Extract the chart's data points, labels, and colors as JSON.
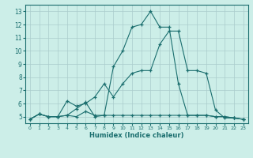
{
  "xlabel": "Humidex (Indice chaleur)",
  "bg_color": "#cceee8",
  "grid_color": "#aacccc",
  "line_color": "#1a6e6e",
  "xlim": [
    -0.5,
    23.5
  ],
  "ylim": [
    4.5,
    13.5
  ],
  "xticks": [
    0,
    1,
    2,
    3,
    4,
    5,
    6,
    7,
    8,
    9,
    10,
    11,
    12,
    13,
    14,
    15,
    16,
    17,
    18,
    19,
    20,
    21,
    22,
    23
  ],
  "yticks": [
    5,
    6,
    7,
    8,
    9,
    10,
    11,
    12,
    13
  ],
  "line1_x": [
    0,
    1,
    2,
    3,
    4,
    5,
    6,
    7,
    8,
    9,
    10,
    11,
    12,
    13,
    14,
    15,
    16,
    17,
    18,
    19,
    20,
    21,
    22,
    23
  ],
  "line1_y": [
    4.8,
    5.2,
    5.0,
    5.0,
    5.1,
    5.0,
    5.4,
    5.1,
    5.1,
    8.8,
    10.0,
    11.8,
    12.0,
    13.0,
    11.8,
    11.8,
    7.5,
    5.1,
    5.1,
    5.1,
    5.0,
    5.0,
    4.9,
    4.8
  ],
  "line2_x": [
    0,
    1,
    2,
    3,
    4,
    5,
    6,
    7,
    8,
    9,
    10,
    11,
    12,
    13,
    14,
    15,
    16,
    17,
    18,
    19,
    20,
    21,
    22,
    23
  ],
  "line2_y": [
    4.8,
    5.2,
    5.0,
    5.0,
    5.1,
    5.6,
    6.1,
    5.0,
    5.1,
    5.1,
    5.1,
    5.1,
    5.1,
    5.1,
    5.1,
    5.1,
    5.1,
    5.1,
    5.1,
    5.1,
    5.0,
    5.0,
    4.9,
    4.8
  ],
  "line3_x": [
    0,
    1,
    2,
    3,
    4,
    5,
    6,
    7,
    8,
    9,
    10,
    11,
    12,
    13,
    14,
    15,
    16,
    17,
    18,
    19,
    20,
    21,
    22,
    23
  ],
  "line3_y": [
    4.8,
    5.2,
    5.0,
    5.0,
    6.2,
    5.8,
    6.0,
    6.5,
    7.5,
    6.5,
    7.5,
    8.3,
    8.5,
    8.5,
    10.5,
    11.5,
    11.5,
    8.5,
    8.5,
    8.3,
    5.5,
    4.9,
    4.9,
    4.8
  ]
}
